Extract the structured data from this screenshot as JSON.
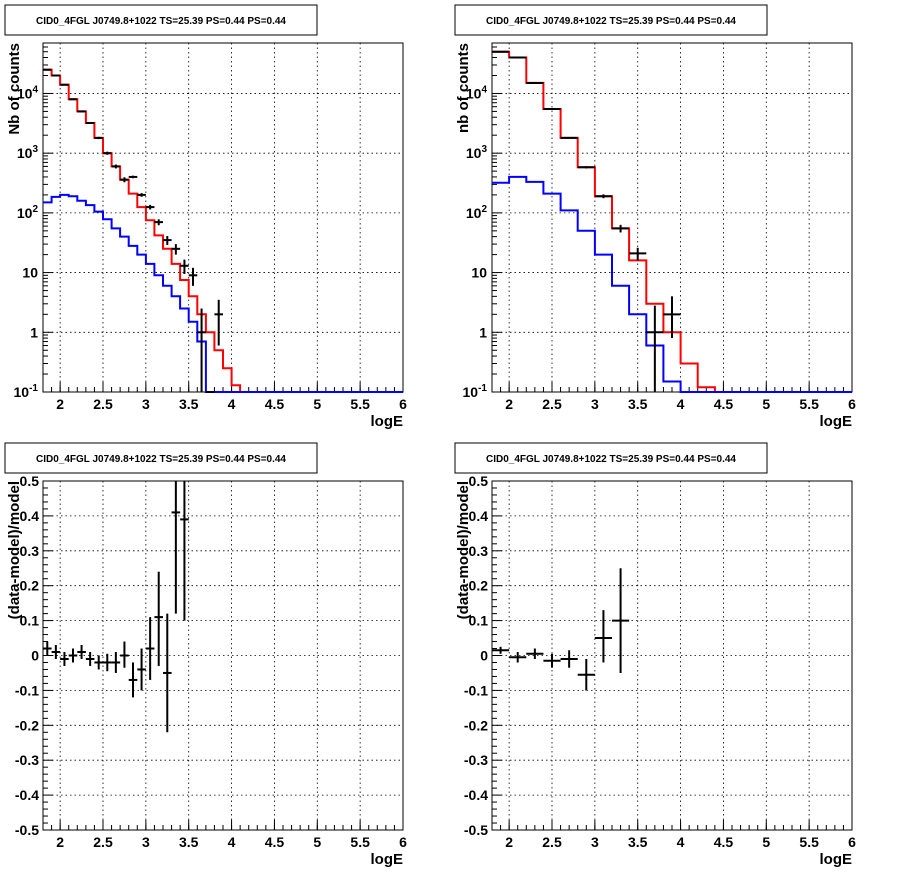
{
  "chart_data": [
    {
      "type": "line",
      "title": "CID0_4FGL J0749.8+1022 TS=25.39 PS=0.44 PS=0.44",
      "xlabel": "logE",
      "ylabel": "Nb of counts",
      "log_y": true,
      "xlim": [
        1.8,
        6.0
      ],
      "ylim": [
        0.1,
        70000
      ],
      "grid": true,
      "x_ticks": [
        "2",
        "2.5",
        "3",
        "3.5",
        "4",
        "4.5",
        "5",
        "5.5",
        "6"
      ],
      "y_ticks": [
        "10^-1",
        "1",
        "10",
        "10^2",
        "10^3",
        "10^4"
      ],
      "series": [
        {
          "color": "#ff0000",
          "kind": "step",
          "edges": [
            1.8,
            1.9,
            2.0,
            2.1,
            2.2,
            2.3,
            2.4,
            2.5,
            2.6,
            2.7,
            2.8,
            2.9,
            3.0,
            3.1,
            3.2,
            3.3,
            3.4,
            3.5,
            3.6,
            3.7,
            3.8,
            3.9,
            4.0,
            4.1,
            4.2,
            4.3,
            4.4,
            4.5,
            6.0
          ],
          "values": [
            25000,
            20000,
            14000,
            8000,
            5000,
            3200,
            1800,
            1000,
            600,
            360,
            210,
            125,
            75,
            42,
            25,
            14,
            7.5,
            4,
            2,
            1,
            0.5,
            0.25,
            0.13,
            0.1,
            0.1,
            0.1,
            0.1,
            0.1
          ]
        },
        {
          "color": "#0000ff",
          "kind": "step",
          "edges": [
            1.8,
            1.9,
            2.0,
            2.1,
            2.2,
            2.3,
            2.4,
            2.5,
            2.6,
            2.7,
            2.8,
            2.9,
            3.0,
            3.1,
            3.2,
            3.3,
            3.4,
            3.5,
            3.6,
            3.7,
            3.8,
            3.9,
            4.0,
            4.1,
            4.2,
            4.3,
            4.4,
            4.5,
            6.0
          ],
          "values": [
            150,
            185,
            200,
            190,
            160,
            135,
            105,
            78,
            55,
            40,
            28,
            20,
            14,
            9,
            6,
            4,
            2.5,
            1.5,
            0.7,
            0.1,
            0.1,
            0.1,
            0.1,
            0.1,
            0.1,
            0.1,
            0.1,
            0.1
          ]
        },
        {
          "color": "#000000",
          "kind": "points",
          "x": [
            1.85,
            1.95,
            2.05,
            2.15,
            2.25,
            2.35,
            2.45,
            2.55,
            2.65,
            2.75,
            2.85,
            2.95,
            3.05,
            3.15,
            3.25,
            3.35,
            3.45,
            3.55,
            3.65,
            3.75,
            3.85
          ],
          "y": [
            25000,
            20000,
            14000,
            8000,
            5000,
            3200,
            1800,
            1000,
            600,
            360,
            400,
            200,
            125,
            70,
            35,
            25,
            13,
            9,
            1,
            0.1,
            2
          ],
          "xerr": [
            0.05,
            0.05,
            0.05,
            0.05,
            0.05,
            0.05,
            0.05,
            0.05,
            0.05,
            0.05,
            0.05,
            0.05,
            0.05,
            0.05,
            0.05,
            0.05,
            0.05,
            0.05,
            0.05,
            0.05,
            0.05
          ],
          "ylo": [
            24700,
            19700,
            13760,
            7820,
            4860,
            3090,
            1720,
            940,
            555,
            325,
            380,
            186,
            114,
            62,
            29,
            20,
            9.5,
            6,
            0.1,
            0.1,
            0.6
          ],
          "yhi": [
            25300,
            20300,
            14240,
            8180,
            5140,
            3310,
            1880,
            1060,
            645,
            395,
            420,
            214,
            136,
            78,
            41,
            30,
            16.5,
            12,
            2.5,
            0.1,
            3.5
          ]
        }
      ]
    },
    {
      "type": "line",
      "title": "CID0_4FGL J0749.8+1022 TS=25.39 PS=0.44 PS=0.44",
      "xlabel": "logE",
      "ylabel": "nb of counts",
      "log_y": true,
      "xlim": [
        1.8,
        6.0
      ],
      "ylim": [
        0.1,
        70000
      ],
      "grid": true,
      "x_ticks": [
        "2",
        "2.5",
        "3",
        "3.5",
        "4",
        "4.5",
        "5",
        "5.5",
        "6"
      ],
      "y_ticks": [
        "10^-1",
        "1",
        "10",
        "10^2",
        "10^3",
        "10^4"
      ],
      "series": [
        {
          "color": "#ff0000",
          "kind": "step",
          "edges": [
            1.8,
            2.0,
            2.2,
            2.4,
            2.6,
            2.8,
            3.0,
            3.2,
            3.4,
            3.6,
            3.8,
            4.0,
            4.2,
            4.4,
            6.0
          ],
          "values": [
            50000,
            40000,
            15000,
            5500,
            1800,
            580,
            190,
            55,
            16,
            3,
            1,
            0.3,
            0.12,
            0.1
          ]
        },
        {
          "color": "#0000ff",
          "kind": "step",
          "edges": [
            1.8,
            2.0,
            2.2,
            2.4,
            2.6,
            2.8,
            3.0,
            3.2,
            3.4,
            3.6,
            3.8,
            4.0,
            4.2,
            4.4,
            6.0
          ],
          "values": [
            320,
            400,
            330,
            210,
            110,
            50,
            20,
            6,
            2,
            0.6,
            0.15,
            0.1,
            0.1,
            0.1
          ]
        },
        {
          "color": "#000000",
          "kind": "points",
          "x": [
            1.9,
            2.1,
            2.3,
            2.5,
            2.7,
            2.9,
            3.1,
            3.3,
            3.5,
            3.7,
            3.9
          ],
          "y": [
            50000,
            40000,
            15000,
            5500,
            1800,
            580,
            190,
            55,
            21,
            1,
            2
          ],
          "xerr": [
            0.1,
            0.1,
            0.1,
            0.1,
            0.1,
            0.1,
            0.1,
            0.1,
            0.1,
            0.1,
            0.1
          ],
          "ylo": [
            49500,
            39600,
            14750,
            5420,
            1760,
            555,
            176,
            47,
            16,
            0.1,
            0.8
          ],
          "yhi": [
            50500,
            40400,
            15250,
            5580,
            1840,
            605,
            204,
            63,
            26,
            2.8,
            4
          ]
        }
      ]
    },
    {
      "type": "scatter",
      "title": "CID0_4FGL J0749.8+1022 TS=25.39 PS=0.44 PS=0.44",
      "xlabel": "logE",
      "ylabel": "(data-model)/model",
      "log_y": false,
      "xlim": [
        1.8,
        6.0
      ],
      "ylim": [
        -0.5,
        0.5
      ],
      "grid": true,
      "x_ticks": [
        "2",
        "2.5",
        "3",
        "3.5",
        "4",
        "4.5",
        "5",
        "5.5",
        "6"
      ],
      "y_ticks": [
        "-0.5",
        "-0.4",
        "-0.3",
        "-0.2",
        "-0.1",
        "0",
        "0.1",
        "0.2",
        "0.3",
        "0.4",
        "0.5"
      ],
      "series": [
        {
          "color": "#000000",
          "kind": "points",
          "x": [
            1.85,
            1.95,
            2.05,
            2.15,
            2.25,
            2.35,
            2.45,
            2.55,
            2.65,
            2.75,
            2.85,
            2.95,
            3.05,
            3.15,
            3.25,
            3.35,
            3.45
          ],
          "y": [
            0.02,
            0.01,
            -0.01,
            0.0,
            0.01,
            -0.01,
            -0.02,
            -0.02,
            -0.02,
            0.0,
            -0.07,
            -0.04,
            0.02,
            0.11,
            -0.05,
            0.41,
            0.39
          ],
          "xerr": [
            0.05,
            0.05,
            0.05,
            0.05,
            0.05,
            0.05,
            0.05,
            0.05,
            0.05,
            0.05,
            0.05,
            0.05,
            0.05,
            0.05,
            0.05,
            0.05,
            0.05
          ],
          "ylo": [
            0.0,
            -0.01,
            -0.03,
            -0.02,
            -0.01,
            -0.03,
            -0.04,
            -0.045,
            -0.05,
            -0.035,
            -0.12,
            -0.1,
            -0.07,
            -0.03,
            -0.22,
            0.12,
            0.1
          ],
          "yhi": [
            0.04,
            0.03,
            0.01,
            0.02,
            0.03,
            0.01,
            0.0,
            0.005,
            0.01,
            0.04,
            -0.02,
            0.02,
            0.11,
            0.24,
            0.12,
            0.5,
            0.5
          ]
        }
      ]
    },
    {
      "type": "scatter",
      "title": "CID0_4FGL J0749.8+1022 TS=25.39 PS=0.44 PS=0.44",
      "xlabel": "logE",
      "ylabel": "(data-model)/model",
      "log_y": false,
      "xlim": [
        1.8,
        6.0
      ],
      "ylim": [
        -0.5,
        0.5
      ],
      "grid": true,
      "x_ticks": [
        "2",
        "2.5",
        "3",
        "3.5",
        "4",
        "4.5",
        "5",
        "5.5",
        "6"
      ],
      "y_ticks": [
        "-0.5",
        "-0.4",
        "-0.3",
        "-0.2",
        "-0.1",
        "0",
        "0.1",
        "0.2",
        "0.3",
        "0.4",
        "0.5"
      ],
      "series": [
        {
          "color": "#000000",
          "kind": "points",
          "x": [
            1.9,
            2.1,
            2.3,
            2.5,
            2.7,
            2.9,
            3.1,
            3.3
          ],
          "y": [
            0.015,
            -0.005,
            0.005,
            -0.015,
            -0.01,
            -0.055,
            0.05,
            0.1
          ],
          "xerr": [
            0.1,
            0.1,
            0.1,
            0.1,
            0.1,
            0.1,
            0.1,
            0.1
          ],
          "ylo": [
            0.005,
            -0.02,
            -0.01,
            -0.035,
            -0.035,
            -0.1,
            -0.02,
            -0.05
          ],
          "yhi": [
            0.025,
            0.01,
            0.02,
            0.005,
            0.015,
            -0.01,
            0.13,
            0.25
          ]
        }
      ]
    }
  ]
}
